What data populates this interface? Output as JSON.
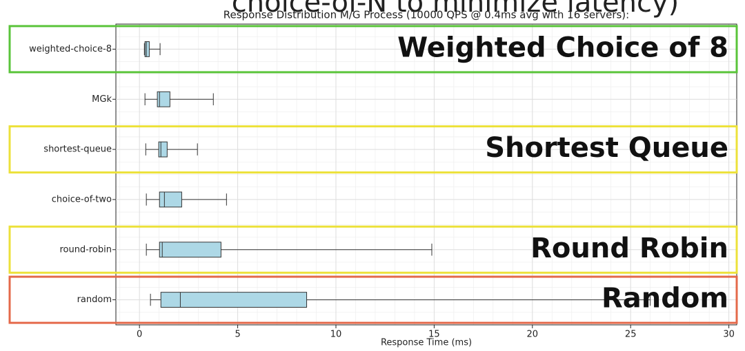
{
  "heading": "choice-of-N to minimize latency)",
  "chart_data": {
    "type": "box",
    "title": "Response Distribution M/G Process (10000 QPS @ 0.4ms avg with 16 servers):",
    "xlabel": "Response Time (ms)",
    "categories": [
      "weighted-choice-8",
      "MGk",
      "shortest-queue",
      "choice-of-two",
      "round-robin",
      "random"
    ],
    "boxes": [
      {
        "low": 0.25,
        "q1": 0.28,
        "median": 0.35,
        "q3": 0.5,
        "high": 1.05
      },
      {
        "low": 0.28,
        "q1": 0.91,
        "median": 1.02,
        "q3": 1.55,
        "high": 3.76
      },
      {
        "low": 0.32,
        "q1": 0.98,
        "median": 1.09,
        "q3": 1.41,
        "high": 2.95
      },
      {
        "low": 0.35,
        "q1": 1.02,
        "median": 1.27,
        "q3": 2.15,
        "high": 4.43
      },
      {
        "low": 0.35,
        "q1": 1.02,
        "median": 1.16,
        "q3": 4.15,
        "high": 14.88
      },
      {
        "low": 0.56,
        "q1": 1.09,
        "median": 2.08,
        "q3": 8.51,
        "high": 26
      }
    ],
    "color": "#add8e6",
    "xlim": [
      -1.2,
      30.4
    ],
    "xticks": [
      0,
      5,
      10,
      15,
      20,
      25,
      30
    ],
    "grid": true,
    "annotations": [
      {
        "text": "Weighted Choice of 8",
        "category": "weighted-choice-8",
        "color": "#5ac43a"
      },
      {
        "text": "Shortest Queue",
        "category": "shortest-queue",
        "color": "#ece13a"
      },
      {
        "text": "Round Robin",
        "category": "round-robin",
        "color": "#ece13a"
      },
      {
        "text": "Random",
        "category": "random",
        "color": "#e4694a"
      }
    ]
  }
}
